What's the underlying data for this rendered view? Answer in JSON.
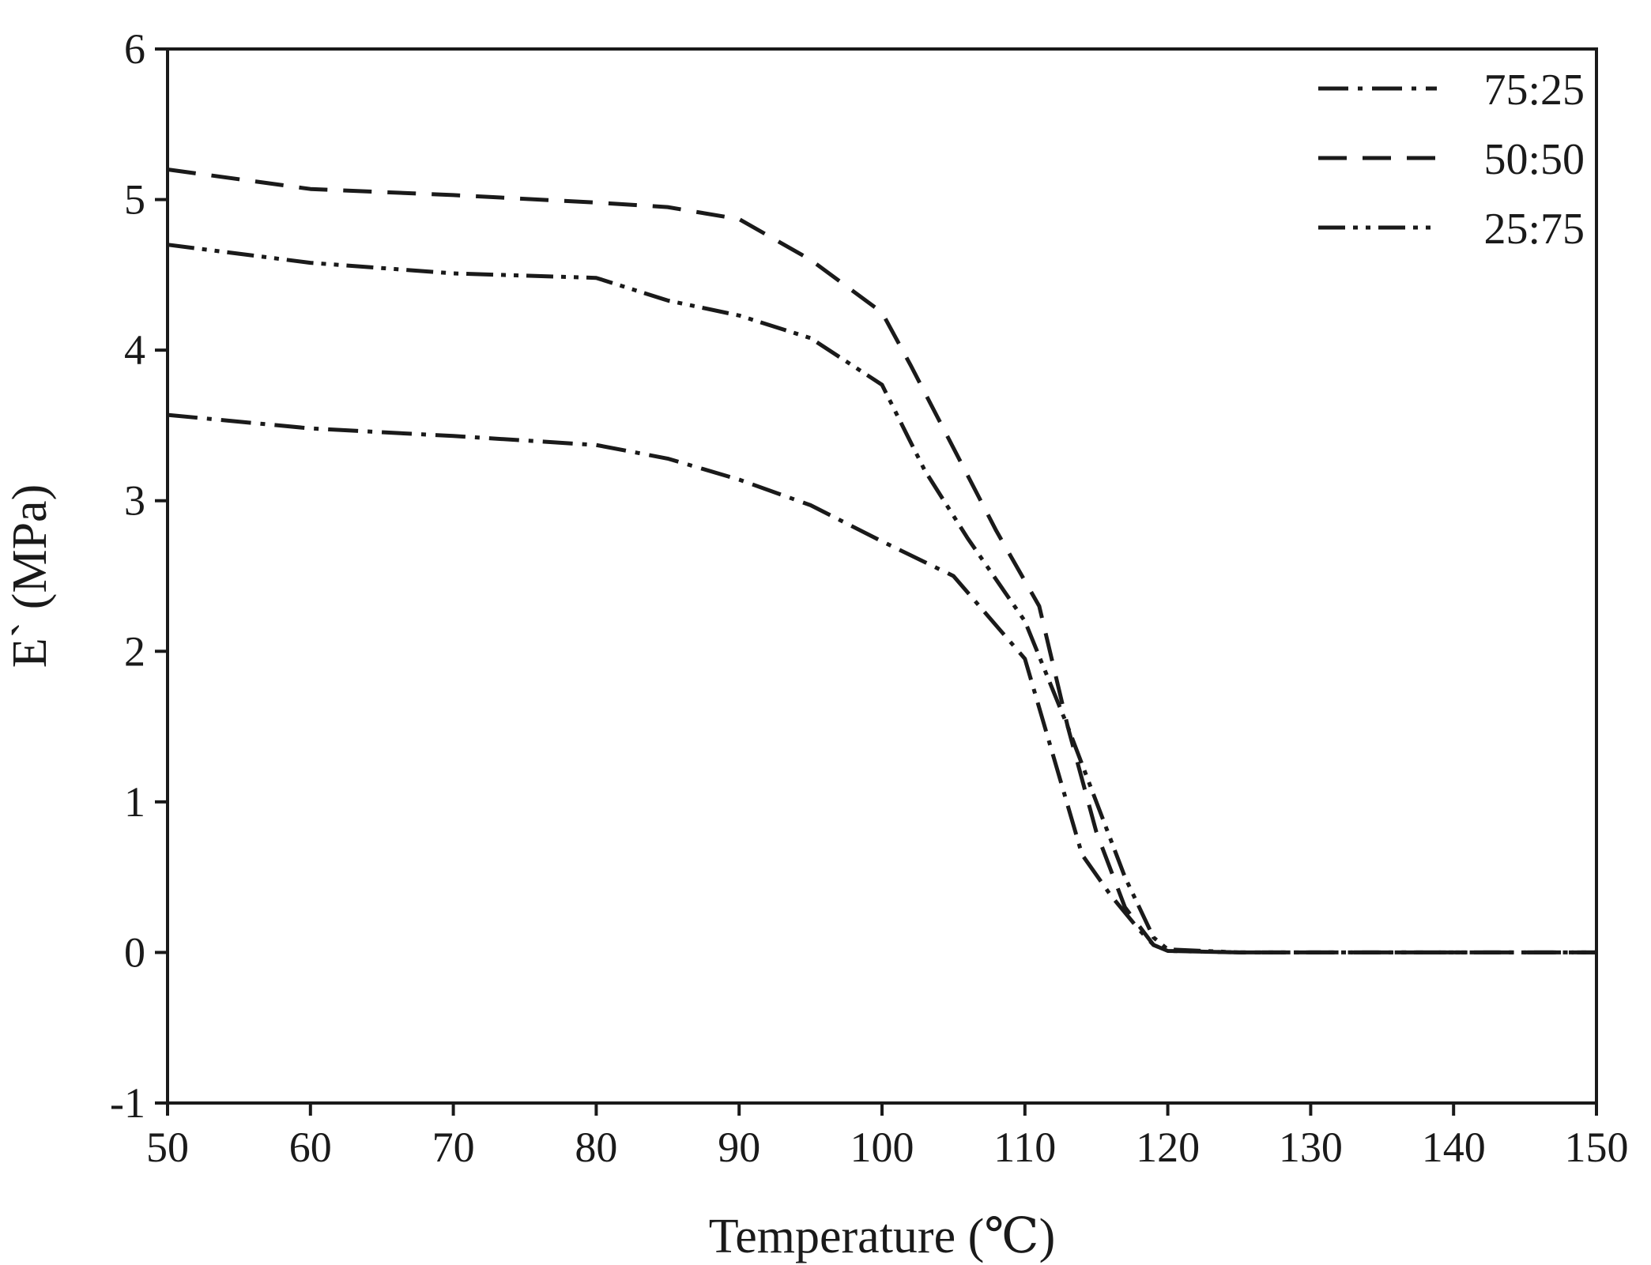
{
  "chart_data": {
    "type": "line",
    "xlabel": "Temperature (℃)",
    "ylabel": "E` (MPa)",
    "xlim": [
      50,
      150
    ],
    "ylim": [
      -1,
      6
    ],
    "x_ticks": [
      50,
      60,
      70,
      80,
      90,
      100,
      110,
      120,
      130,
      140,
      150
    ],
    "y_ticks": [
      -1,
      0,
      1,
      2,
      3,
      4,
      5,
      6
    ],
    "grid": false,
    "legend_position": "top-right",
    "line_color": "#1a1a1a",
    "series": [
      {
        "name": "75:25",
        "line_style": "dash-dot",
        "x": [
          50,
          60,
          70,
          80,
          85,
          90,
          95,
          100,
          105,
          110,
          112,
          114,
          116,
          118,
          119,
          120,
          125,
          130,
          140,
          150
        ],
        "y": [
          3.57,
          3.48,
          3.43,
          3.37,
          3.28,
          3.14,
          2.97,
          2.73,
          2.5,
          1.95,
          1.3,
          0.65,
          0.38,
          0.15,
          0.05,
          0.01,
          0.0,
          0.0,
          0.0,
          0.0
        ]
      },
      {
        "name": "50:50",
        "line_style": "dashed",
        "x": [
          50,
          60,
          70,
          80,
          85,
          90,
          95,
          100,
          102,
          105,
          108,
          111,
          113,
          115,
          117,
          119,
          120,
          125,
          130,
          140,
          150
        ],
        "y": [
          5.2,
          5.07,
          5.03,
          4.98,
          4.95,
          4.87,
          4.6,
          4.25,
          3.9,
          3.35,
          2.8,
          2.3,
          1.5,
          0.8,
          0.3,
          0.05,
          0.01,
          0.0,
          0.0,
          0.0,
          0.0
        ]
      },
      {
        "name": "25:75",
        "line_style": "dash-dot-dot",
        "x": [
          50,
          60,
          70,
          80,
          85,
          90,
          95,
          100,
          103,
          106,
          110,
          113,
          115,
          117,
          119,
          120,
          125,
          130,
          140,
          150
        ],
        "y": [
          4.7,
          4.58,
          4.51,
          4.48,
          4.33,
          4.23,
          4.08,
          3.77,
          3.2,
          2.75,
          2.2,
          1.5,
          1.0,
          0.5,
          0.1,
          0.02,
          0.0,
          0.0,
          0.0,
          0.0
        ]
      }
    ]
  }
}
